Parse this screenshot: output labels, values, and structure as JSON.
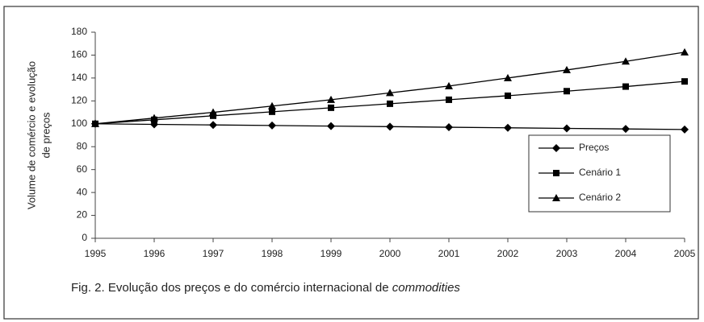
{
  "chart_data": {
    "type": "line",
    "ylabel": [
      "Volume de comércio e evolução",
      "de preços"
    ],
    "caption": [
      "Fig. 2. Evolução dos preços e do comércio internacional de",
      "commodities"
    ],
    "x": [
      1995,
      1996,
      1997,
      1998,
      1999,
      2000,
      2001,
      2002,
      2003,
      2004,
      2005
    ],
    "series": [
      {
        "name": "Preços",
        "color": "#000000",
        "marker": "diamond",
        "values": [
          100,
          99.5,
          99,
          98.5,
          98,
          97.5,
          97,
          96.5,
          96,
          95.5,
          95
        ]
      },
      {
        "name": "Cenário 1",
        "color": "#000000",
        "marker": "square",
        "values": [
          100,
          103.5,
          107,
          110.5,
          114,
          117.5,
          121,
          124.5,
          128.5,
          132.5,
          137
        ]
      },
      {
        "name": "Cenário 2",
        "color": "#000000",
        "marker": "triangle",
        "values": [
          100,
          105,
          110,
          115.5,
          121,
          127,
          133,
          140,
          147,
          154.5,
          162.5
        ]
      }
    ],
    "xlim": [
      1995,
      2005
    ],
    "xticks": [
      1995,
      1996,
      1997,
      1998,
      1999,
      2000,
      2001,
      2002,
      2003,
      2004,
      2005
    ],
    "ylim": [
      0,
      180
    ],
    "yticks": [
      0,
      20,
      40,
      60,
      80,
      100,
      120,
      140,
      160,
      180
    ],
    "grid": false,
    "legend": "right"
  }
}
